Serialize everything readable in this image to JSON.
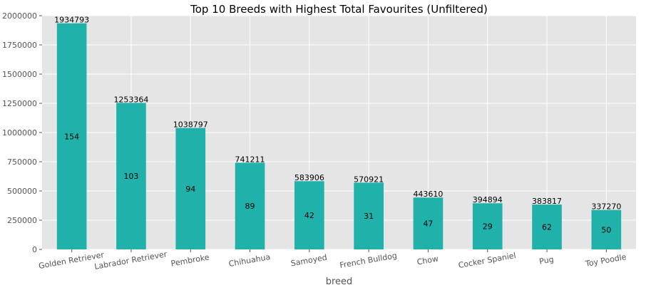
{
  "chart_data": {
    "type": "bar",
    "title": "Top 10 Breeds with Highest Total Favourites (Unfiltered)",
    "xlabel": "breed",
    "ylabel": "",
    "ylim": [
      0,
      2000000
    ],
    "yticks": [
      0,
      250000,
      500000,
      750000,
      1000000,
      1250000,
      1500000,
      1750000,
      2000000
    ],
    "grid": true,
    "categories": [
      "Golden Retriever",
      "Labrador Retriever",
      "Pembroke",
      "Chihuahua",
      "Samoyed",
      "French Bulldog",
      "Chow",
      "Cocker Spaniel",
      "Pug",
      "Toy Poodle"
    ],
    "values": [
      1934793,
      1253364,
      1038797,
      741211,
      583906,
      570921,
      443610,
      394894,
      383817,
      337270
    ],
    "counts": [
      154,
      103,
      94,
      89,
      42,
      31,
      47,
      29,
      62,
      50
    ],
    "colors": {
      "bar": "#20b2aa",
      "plot_bg": "#e5e5e5",
      "grid": "#ffffff"
    }
  }
}
